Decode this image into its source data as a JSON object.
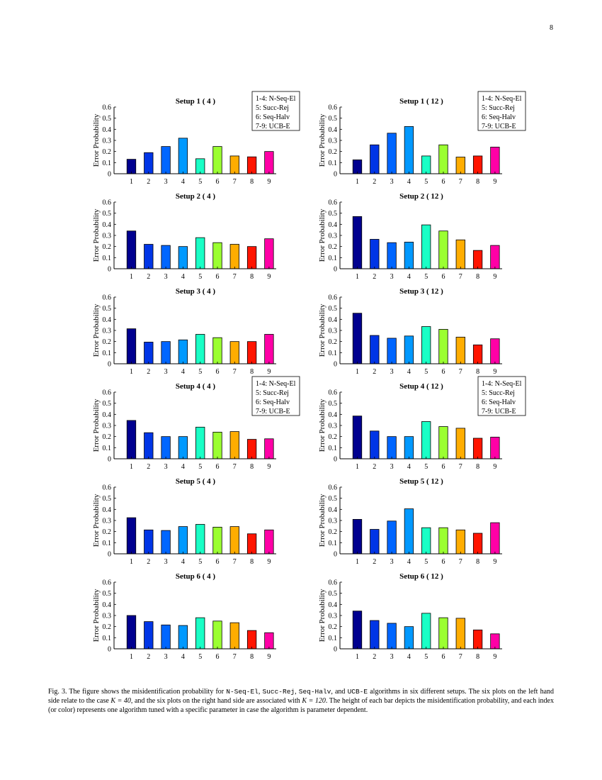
{
  "page_number": "8",
  "y_axis_label": "Error Probability",
  "legend": [
    "1-4: N-Seq-El",
    "5: Succ-Rej",
    "6: Seq-Halv",
    "7-9: UCB-E"
  ],
  "bar_colors": [
    "#00008f",
    "#0035e6",
    "#0066ff",
    "#0099ff",
    "#1affc6",
    "#9bff31",
    "#ffad00",
    "#ff1500",
    "#ff00a6"
  ],
  "chart_data": [
    {
      "type": "bar",
      "title": "Setup 1 ( 4 )",
      "categories": [
        "1",
        "2",
        "3",
        "4",
        "5",
        "6",
        "7",
        "8",
        "9"
      ],
      "values": [
        0.13,
        0.19,
        0.245,
        0.32,
        0.135,
        0.245,
        0.16,
        0.152,
        0.2
      ],
      "ylabel": "Error Probability",
      "ylim": [
        0,
        0.6
      ],
      "yticks": [
        "0",
        "0.1",
        "0.2",
        "0.3",
        "0.4",
        "0.5",
        "0.6"
      ],
      "legend": true
    },
    {
      "type": "bar",
      "title": "Setup 1 ( 12 )",
      "categories": [
        "1",
        "2",
        "3",
        "4",
        "5",
        "6",
        "7",
        "8",
        "9"
      ],
      "values": [
        0.125,
        0.26,
        0.365,
        0.425,
        0.16,
        0.26,
        0.15,
        0.16,
        0.24
      ],
      "ylabel": "Error Probability",
      "ylim": [
        0,
        0.6
      ],
      "yticks": [
        "0",
        "0.1",
        "0.2",
        "0.3",
        "0.4",
        "0.5",
        "0.6"
      ],
      "legend": true
    },
    {
      "type": "bar",
      "title": "Setup 2 ( 4 )",
      "categories": [
        "1",
        "2",
        "3",
        "4",
        "5",
        "6",
        "7",
        "8",
        "9"
      ],
      "values": [
        0.34,
        0.22,
        0.21,
        0.2,
        0.28,
        0.235,
        0.22,
        0.2,
        0.27
      ],
      "ylabel": "Error Probability",
      "ylim": [
        0,
        0.6
      ],
      "yticks": [
        "0",
        "0.1",
        "0.2",
        "0.3",
        "0.4",
        "0.5",
        "0.6"
      ],
      "legend": false
    },
    {
      "type": "bar",
      "title": "Setup 2 ( 12 )",
      "categories": [
        "1",
        "2",
        "3",
        "4",
        "5",
        "6",
        "7",
        "8",
        "9"
      ],
      "values": [
        0.47,
        0.265,
        0.235,
        0.24,
        0.395,
        0.34,
        0.26,
        0.165,
        0.21
      ],
      "ylabel": "Error Probability",
      "ylim": [
        0,
        0.6
      ],
      "yticks": [
        "0",
        "0.1",
        "0.2",
        "0.3",
        "0.4",
        "0.5",
        "0.6"
      ],
      "legend": false
    },
    {
      "type": "bar",
      "title": "Setup 3 ( 4 )",
      "categories": [
        "1",
        "2",
        "3",
        "4",
        "5",
        "6",
        "7",
        "8",
        "9"
      ],
      "values": [
        0.315,
        0.195,
        0.2,
        0.215,
        0.265,
        0.235,
        0.2,
        0.2,
        0.265
      ],
      "ylabel": "Error Probability",
      "ylim": [
        0,
        0.6
      ],
      "yticks": [
        "0",
        "0.1",
        "0.2",
        "0.3",
        "0.4",
        "0.5",
        "0.6"
      ],
      "legend": false
    },
    {
      "type": "bar",
      "title": "Setup 3 ( 12 )",
      "categories": [
        "1",
        "2",
        "3",
        "4",
        "5",
        "6",
        "7",
        "8",
        "9"
      ],
      "values": [
        0.455,
        0.255,
        0.23,
        0.25,
        0.335,
        0.31,
        0.24,
        0.17,
        0.225
      ],
      "ylabel": "Error Probability",
      "ylim": [
        0,
        0.6
      ],
      "yticks": [
        "0",
        "0.1",
        "0.2",
        "0.3",
        "0.4",
        "0.5",
        "0.6"
      ],
      "legend": false
    },
    {
      "type": "bar",
      "title": "Setup 4 ( 4 )",
      "categories": [
        "1",
        "2",
        "3",
        "4",
        "5",
        "6",
        "7",
        "8",
        "9"
      ],
      "values": [
        0.345,
        0.235,
        0.2,
        0.2,
        0.285,
        0.24,
        0.245,
        0.175,
        0.18
      ],
      "ylabel": "Error Probability",
      "ylim": [
        0,
        0.6
      ],
      "yticks": [
        "0",
        "0.1",
        "0.2",
        "0.3",
        "0.4",
        "0.5",
        "0.6"
      ],
      "legend": true
    },
    {
      "type": "bar",
      "title": "Setup 4 ( 12 )",
      "categories": [
        "1",
        "2",
        "3",
        "4",
        "5",
        "6",
        "7",
        "8",
        "9"
      ],
      "values": [
        0.385,
        0.25,
        0.2,
        0.2,
        0.335,
        0.29,
        0.275,
        0.185,
        0.195
      ],
      "ylabel": "Error Probability",
      "ylim": [
        0,
        0.6
      ],
      "yticks": [
        "0",
        "0.1",
        "0.2",
        "0.3",
        "0.4",
        "0.5",
        "0.6"
      ],
      "legend": true
    },
    {
      "type": "bar",
      "title": "Setup 5 ( 4 )",
      "categories": [
        "1",
        "2",
        "3",
        "4",
        "5",
        "6",
        "7",
        "8",
        "9"
      ],
      "values": [
        0.325,
        0.215,
        0.21,
        0.245,
        0.265,
        0.24,
        0.245,
        0.18,
        0.215
      ],
      "ylabel": "Error Probability",
      "ylim": [
        0,
        0.6
      ],
      "yticks": [
        "0",
        "0.1",
        "0.2",
        "0.3",
        "0.4",
        "0.5",
        "0.6"
      ],
      "legend": false
    },
    {
      "type": "bar",
      "title": "Setup 5 ( 12 )",
      "categories": [
        "1",
        "2",
        "3",
        "4",
        "5",
        "6",
        "7",
        "8",
        "9"
      ],
      "values": [
        0.31,
        0.22,
        0.295,
        0.405,
        0.235,
        0.235,
        0.215,
        0.185,
        0.28
      ],
      "ylabel": "Error Probability",
      "ylim": [
        0,
        0.6
      ],
      "yticks": [
        "0",
        "0.1",
        "0.2",
        "0.3",
        "0.4",
        "0.5",
        "0.6"
      ],
      "legend": false
    },
    {
      "type": "bar",
      "title": "Setup 6 ( 4 )",
      "categories": [
        "1",
        "2",
        "3",
        "4",
        "5",
        "6",
        "7",
        "8",
        "9"
      ],
      "values": [
        0.3,
        0.245,
        0.215,
        0.21,
        0.28,
        0.25,
        0.235,
        0.165,
        0.145
      ],
      "ylabel": "Error Probability",
      "ylim": [
        0,
        0.6
      ],
      "yticks": [
        "0",
        "0.1",
        "0.2",
        "0.3",
        "0.4",
        "0.5",
        "0.6"
      ],
      "legend": false
    },
    {
      "type": "bar",
      "title": "Setup 6 ( 12 )",
      "categories": [
        "1",
        "2",
        "3",
        "4",
        "5",
        "6",
        "7",
        "8",
        "9"
      ],
      "values": [
        0.34,
        0.255,
        0.23,
        0.2,
        0.32,
        0.28,
        0.275,
        0.17,
        0.135
      ],
      "ylabel": "Error Probability",
      "ylim": [
        0,
        0.6
      ],
      "yticks": [
        "0",
        "0.1",
        "0.2",
        "0.3",
        "0.4",
        "0.5",
        "0.6"
      ],
      "legend": false
    }
  ],
  "caption": {
    "p1": "Fig. 3.  The figure shows the misidentification probability for ",
    "alg1": "N-Seq-El",
    "sep1": ", ",
    "alg2": "Succ-Rej",
    "sep2": ", ",
    "alg3": "Seq-Halv",
    "sep3": ", and ",
    "alg4": "UCB-E",
    "p2": " algorithms in six different setups. The six plots on the left hand side relate to the case ",
    "m1": "K = 40",
    "p3": ", and the six plots on the right hand side are associated with ",
    "m2": "K = 120",
    "p4": ". The height of each bar depicts the misidentification probability, and each index (or color) represents one algorithm tuned with a specific parameter in case the algorithm is parameter dependent."
  }
}
